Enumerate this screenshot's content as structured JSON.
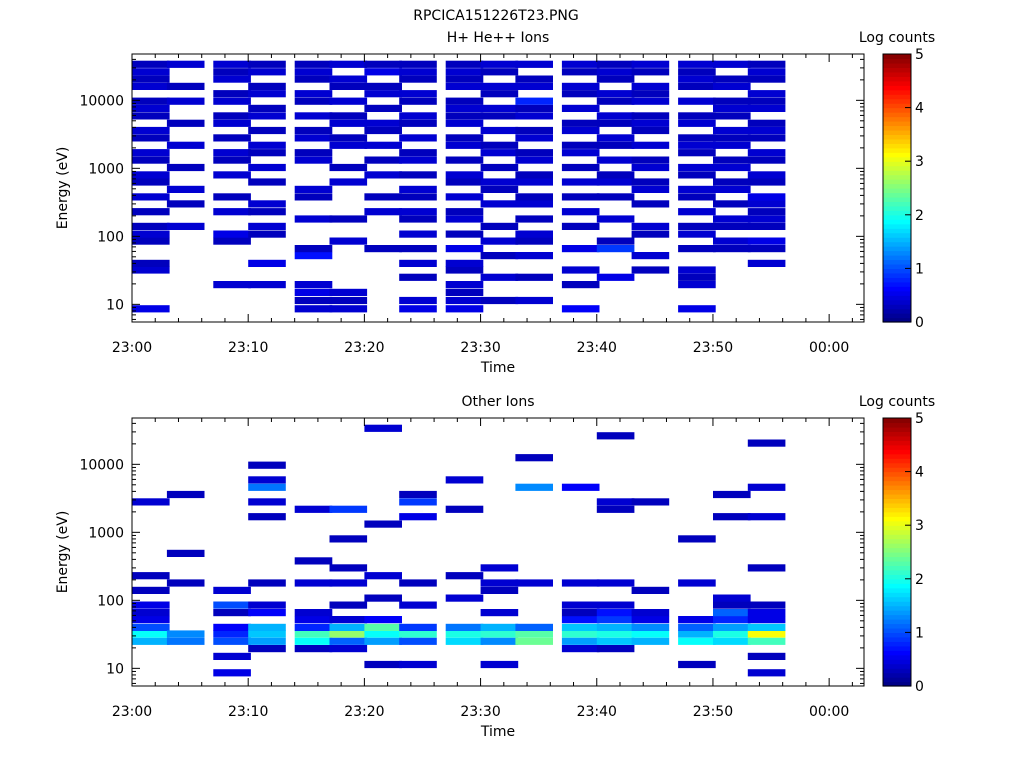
{
  "figure_title": "RPCICA151226T23.PNG",
  "chart_data": [
    {
      "type": "heatmap",
      "title": "H+ He++ Ions",
      "xlabel": "Time",
      "ylabel": "Energy (eV)",
      "colorbar_label": "Log counts",
      "x_ticks": [
        "23:00",
        "23:10",
        "23:20",
        "23:30",
        "23:40",
        "23:50",
        "00:00"
      ],
      "y_ticks": [
        "10",
        "100",
        "1000",
        "10000"
      ],
      "y_scale": "log",
      "y_range_ev": [
        5.5,
        48000
      ],
      "x_range": [
        "23:00",
        "00:03"
      ],
      "colorbar_ticks": [
        "0",
        "1",
        "2",
        "3",
        "4",
        "5"
      ],
      "colorbar_range": [
        0,
        5
      ],
      "columns": [
        "23:00",
        "23:03",
        "23:07",
        "23:10",
        "23:14",
        "23:17",
        "23:20",
        "23:23",
        "23:27",
        "23:30",
        "23:33",
        "23:37",
        "23:40",
        "23:43",
        "23:47",
        "23:50",
        "23:53"
      ],
      "energy_bins_ev": [
        8.6,
        11.4,
        15,
        19.5,
        25,
        32,
        40,
        52,
        66,
        85,
        108,
        140,
        180,
        230,
        300,
        380,
        490,
        630,
        800,
        1030,
        1320,
        1700,
        2180,
        2800,
        3600,
        4600,
        5900,
        7600,
        9700,
        12500,
        16000,
        20500,
        26300,
        33800
      ],
      "levels": [
        [
          0.5,
          0,
          0,
          0,
          0,
          0.4,
          0.3,
          0,
          0,
          0.3,
          0.4,
          0.3,
          0,
          0.3,
          0,
          0.4,
          0,
          0.3,
          0.4,
          0,
          0.3,
          0.4,
          0,
          0.3,
          0.4,
          0,
          0.3,
          0.4,
          0.3,
          0,
          0.4,
          0.3,
          0.4,
          0.3
        ],
        [
          0,
          0,
          0,
          0,
          0,
          0,
          0,
          0,
          0,
          0,
          0,
          0.4,
          0,
          0,
          0.3,
          0,
          0.4,
          0,
          0,
          0.3,
          0,
          0,
          0.4,
          0,
          0,
          0.3,
          0,
          0,
          0.4,
          0,
          0.3,
          0,
          0,
          0.4
        ],
        [
          0,
          0,
          0,
          0.4,
          0,
          0,
          0,
          0,
          0,
          0.3,
          0.5,
          0,
          0,
          0.4,
          0,
          0.3,
          0,
          0,
          0.4,
          0,
          0.3,
          0.4,
          0,
          0.3,
          0,
          0.4,
          0.3,
          0,
          0.4,
          0.3,
          0,
          0.4,
          0.3,
          0.4
        ],
        [
          0,
          0,
          0,
          0.4,
          0,
          0,
          0.5,
          0,
          0,
          0,
          0.3,
          0.4,
          0,
          0.3,
          0.4,
          0,
          0,
          0.3,
          0,
          0.4,
          0,
          0.3,
          0.4,
          0,
          0.3,
          0,
          0.4,
          0.3,
          0,
          0.4,
          0.3,
          0,
          0.4,
          0.3
        ],
        [
          0.4,
          0.3,
          0.5,
          0.4,
          0,
          0,
          0,
          0.7,
          0.3,
          0,
          0,
          0,
          0.4,
          0,
          0,
          0.3,
          0.4,
          0,
          0,
          0,
          0.4,
          0.3,
          0,
          0.4,
          0.3,
          0,
          0.4,
          0,
          0.3,
          0.4,
          0,
          0.3,
          0.4,
          0.3
        ],
        [
          0.4,
          0.3,
          0.4,
          0,
          0,
          0,
          0,
          0,
          0,
          0.4,
          0,
          0,
          0.3,
          0,
          0,
          0,
          0,
          0.4,
          0,
          0.3,
          0,
          0,
          0.4,
          0.3,
          0,
          0.4,
          0.3,
          0,
          0.4,
          0,
          0.3,
          0.4,
          0,
          0.4
        ],
        [
          0,
          0,
          0,
          0,
          0,
          0,
          0,
          0,
          0.3,
          0,
          0,
          0,
          0,
          0.4,
          0,
          0.3,
          0,
          0,
          0.4,
          0,
          0.3,
          0,
          0.4,
          0,
          0.3,
          0.4,
          0,
          0.3,
          0,
          0.4,
          0.3,
          0,
          0.5,
          0.3
        ],
        [
          0.5,
          0.4,
          0,
          0,
          0.3,
          0,
          0.4,
          0,
          0.3,
          0,
          0.4,
          0,
          0.3,
          0.4,
          0,
          0.3,
          0.4,
          0,
          0.3,
          0,
          0.4,
          0.3,
          0,
          0.4,
          0,
          0.3,
          0.4,
          0,
          0.3,
          0.4,
          0,
          0.3,
          0.4,
          0.3
        ],
        [
          0.5,
          0.4,
          0.3,
          0.4,
          0,
          0.3,
          0.4,
          0,
          0.5,
          0,
          0.3,
          0,
          0.4,
          0.3,
          0,
          0.4,
          0,
          0.3,
          0.4,
          0,
          0.3,
          0,
          0.4,
          0.3,
          0,
          0.4,
          0.3,
          0.4,
          0.3,
          0,
          0.4,
          0.3,
          0.4,
          0.3
        ],
        [
          0,
          0.3,
          0,
          0,
          0.4,
          0,
          0,
          0.3,
          0,
          0.4,
          0,
          0.3,
          0,
          0,
          0.4,
          0,
          0.3,
          0.4,
          0,
          0.3,
          0,
          0.4,
          0.3,
          0,
          0.4,
          0,
          0.3,
          0.4,
          0,
          0.3,
          0.4,
          0,
          0.3,
          0.4
        ],
        [
          0,
          0.4,
          0,
          0,
          0.3,
          0,
          0,
          0.4,
          0,
          0.3,
          0.4,
          0,
          0.3,
          0,
          0.4,
          0.3,
          0,
          0.4,
          0.3,
          0,
          0.4,
          0.3,
          0,
          0.4,
          0.3,
          0,
          0.4,
          0.3,
          0.8,
          0,
          0.4,
          0.3,
          0,
          0.4
        ],
        [
          0.6,
          0,
          0,
          0.3,
          0,
          0.4,
          0,
          0,
          0.5,
          0,
          0,
          0.3,
          0,
          0.4,
          0,
          0.3,
          0,
          0.4,
          0,
          0.3,
          0,
          0.4,
          0.3,
          0,
          0.4,
          0.3,
          0,
          0.4,
          0,
          0.3,
          0.4,
          0,
          0.3,
          0.4
        ],
        [
          0,
          0,
          0,
          0,
          0.5,
          0,
          0,
          0,
          0.9,
          0.3,
          0,
          0,
          0.4,
          0,
          0,
          0.3,
          0,
          0.4,
          0.3,
          0,
          0.4,
          0,
          0.3,
          0.4,
          0,
          0.3,
          0.4,
          0,
          0.3,
          0.4,
          0,
          0.3,
          0.4,
          0.3
        ],
        [
          0,
          0,
          0,
          0,
          0,
          0.3,
          0,
          0.4,
          0,
          0,
          0.3,
          0.4,
          0,
          0,
          0.3,
          0,
          0.4,
          0.3,
          0,
          0.4,
          0.3,
          0,
          0.4,
          0,
          0.3,
          0.4,
          0.3,
          0,
          0.4,
          0.3,
          0.4,
          0,
          0.3,
          0.4
        ],
        [
          0.5,
          0,
          0,
          0.4,
          0.3,
          0.4,
          0,
          0,
          0.3,
          0,
          0.4,
          0.3,
          0,
          0.4,
          0,
          0.3,
          0.4,
          0,
          0.3,
          0.4,
          0,
          0.3,
          0.4,
          0.3,
          0,
          0.4,
          0.3,
          0,
          0.4,
          0,
          0.3,
          0.4,
          0.3,
          0.4
        ],
        [
          0,
          0,
          0,
          0,
          0,
          0,
          0,
          0,
          0.3,
          0.4,
          0,
          0.3,
          0.4,
          0,
          0.3,
          0,
          0.4,
          0.3,
          0,
          0.4,
          0.3,
          0,
          0.4,
          0.3,
          0.4,
          0,
          0.3,
          0.4,
          0.3,
          0,
          0.4,
          0.3,
          0,
          0.4
        ],
        [
          0,
          0,
          0,
          0,
          0,
          0,
          0.4,
          0,
          0.3,
          0.5,
          0,
          0.3,
          0.4,
          0.3,
          0.4,
          0.5,
          0,
          0.3,
          0.4,
          0,
          0.3,
          0.4,
          0,
          0.3,
          0.4,
          0.3,
          0,
          0.4,
          0.3,
          0.4,
          0,
          0.3,
          0.4,
          0.3
        ]
      ]
    },
    {
      "type": "heatmap",
      "title": "Other Ions",
      "xlabel": "Time",
      "ylabel": "Energy (eV)",
      "colorbar_label": "Log counts",
      "x_ticks": [
        "23:00",
        "23:10",
        "23:20",
        "23:30",
        "23:40",
        "23:50",
        "00:00"
      ],
      "y_ticks": [
        "10",
        "100",
        "1000",
        "10000"
      ],
      "y_scale": "log",
      "y_range_ev": [
        5.5,
        48000
      ],
      "x_range": [
        "23:00",
        "00:03"
      ],
      "colorbar_ticks": [
        "0",
        "1",
        "2",
        "3",
        "4",
        "5"
      ],
      "colorbar_range": [
        0,
        5
      ],
      "columns": [
        "23:00",
        "23:03",
        "23:07",
        "23:10",
        "23:14",
        "23:17",
        "23:20",
        "23:23",
        "23:27",
        "23:30",
        "23:33",
        "23:37",
        "23:40",
        "23:43",
        "23:47",
        "23:50",
        "23:53"
      ],
      "energy_bins_ev": [
        8.6,
        11.4,
        15,
        19.5,
        25,
        32,
        40,
        52,
        66,
        85,
        108,
        140,
        180,
        230,
        300,
        380,
        490,
        630,
        800,
        1030,
        1320,
        1700,
        2180,
        2800,
        3600,
        4600,
        5900,
        7600,
        9700,
        12500,
        16000,
        20500,
        26300,
        33800
      ],
      "levels": [
        [
          0,
          0,
          0,
          0,
          1.5,
          1.9,
          1.0,
          0.5,
          0.4,
          0.5,
          0,
          0.3,
          0,
          0.3,
          0,
          0,
          0,
          0,
          0,
          0,
          0,
          0,
          0,
          0.4,
          0,
          0,
          0,
          0,
          0,
          0,
          0,
          0,
          0,
          0
        ],
        [
          0,
          0,
          0,
          0,
          1.2,
          1.3,
          0,
          0,
          0,
          0,
          0,
          0,
          0.3,
          0,
          0,
          0,
          0.3,
          0,
          0,
          0,
          0,
          0,
          0,
          0,
          0.3,
          0,
          0,
          0,
          0,
          0,
          0,
          0,
          0,
          0
        ],
        [
          0.5,
          0,
          0.4,
          0,
          1.0,
          0.8,
          0.6,
          0,
          0.3,
          1.0,
          0,
          0.4,
          0,
          0,
          0,
          0,
          0,
          0,
          0,
          0,
          0,
          0,
          0,
          0,
          0,
          0,
          0,
          0,
          0,
          0,
          0,
          0,
          0,
          0
        ],
        [
          0,
          0,
          0,
          0.3,
          1.4,
          1.6,
          1.5,
          0,
          0.6,
          0.4,
          0,
          0,
          0.3,
          0,
          0,
          0,
          0,
          0,
          0,
          0,
          0,
          0.3,
          0,
          0.4,
          0,
          1.2,
          0.4,
          0,
          0.3,
          0,
          0,
          0,
          0,
          0
        ],
        [
          0,
          0,
          0,
          0.3,
          1.9,
          2.2,
          0.8,
          0.5,
          0.4,
          0,
          0,
          0,
          0.4,
          0,
          0,
          0.3,
          0,
          0,
          0,
          0,
          0,
          0,
          0.4,
          0,
          0,
          0,
          0,
          0,
          0,
          0,
          0,
          0,
          0,
          0
        ],
        [
          0,
          0,
          0,
          0.4,
          1.1,
          2.6,
          1.5,
          0.4,
          0,
          0.3,
          0,
          0,
          0.4,
          0,
          0.3,
          0,
          0,
          0,
          0.3,
          0,
          0,
          0,
          0.9,
          0,
          0,
          0,
          0,
          0,
          0,
          0,
          0,
          0,
          0,
          0
        ],
        [
          0,
          0.3,
          0,
          0,
          1.4,
          1.9,
          2.3,
          0.6,
          0,
          0,
          0.3,
          0,
          0,
          0.4,
          0,
          0,
          0,
          0,
          0,
          0,
          0.3,
          0,
          0,
          0,
          0,
          0,
          0,
          0,
          0,
          0,
          0,
          0,
          0,
          0.4
        ],
        [
          0,
          0.4,
          0,
          0,
          1.0,
          2.1,
          0.9,
          0,
          0,
          0.4,
          0,
          0,
          0.3,
          0,
          0,
          0,
          0,
          0,
          0,
          0,
          0,
          0.5,
          0,
          0.9,
          0.3,
          0,
          0,
          0,
          0,
          0,
          0,
          0,
          0,
          0
        ],
        [
          0,
          0,
          0,
          0,
          1.7,
          2.0,
          1.2,
          0,
          0,
          0,
          0.4,
          0,
          0,
          0.3,
          0,
          0,
          0,
          0,
          0,
          0,
          0,
          0,
          0.3,
          0,
          0,
          0,
          0.4,
          0,
          0,
          0,
          0,
          0,
          0,
          0
        ],
        [
          0,
          0.4,
          0,
          0,
          1.3,
          2.1,
          1.5,
          0,
          0.4,
          0,
          0,
          0.3,
          0.4,
          0,
          0.4,
          0,
          0,
          0,
          0,
          0,
          0,
          0,
          0,
          0,
          0,
          0,
          0,
          0,
          0,
          0,
          0,
          0,
          0,
          0
        ],
        [
          0,
          0,
          0,
          0,
          2.4,
          2.3,
          1.1,
          0,
          0,
          0,
          0,
          0,
          0.4,
          0,
          0,
          0,
          0,
          0,
          0,
          0,
          0,
          0,
          0,
          0,
          0,
          1.3,
          0,
          0,
          0,
          0.3,
          0,
          0,
          0,
          0
        ],
        [
          0,
          0,
          0,
          0.4,
          1.4,
          2.1,
          1.6,
          0.7,
          0.3,
          0.4,
          0,
          0,
          0.4,
          0,
          0,
          0,
          0,
          0,
          0,
          0,
          0,
          0,
          0,
          0,
          0,
          0.6,
          0,
          0,
          0,
          0,
          0,
          0,
          0,
          0
        ],
        [
          0,
          0,
          0,
          0.3,
          1.6,
          2.0,
          1.5,
          0.9,
          0.7,
          0.4,
          0,
          0,
          0.4,
          0,
          0,
          0,
          0,
          0,
          0,
          0,
          0,
          0,
          0.3,
          0.4,
          0,
          0,
          0,
          0,
          0,
          0,
          0,
          0,
          0.3,
          0
        ],
        [
          0,
          0,
          0,
          0,
          1.5,
          1.9,
          1.3,
          0.5,
          0.4,
          0,
          0,
          0.3,
          0,
          0,
          0,
          0,
          0,
          0,
          0,
          0,
          0,
          0,
          0,
          0.3,
          0,
          0,
          0,
          0,
          0,
          0,
          0,
          0,
          0,
          0
        ],
        [
          0,
          0.3,
          0,
          0,
          1.9,
          1.5,
          1.1,
          0.5,
          0,
          0,
          0,
          0,
          0.4,
          0,
          0,
          0,
          0,
          0,
          0.3,
          0,
          0,
          0,
          0,
          0,
          0,
          0,
          0,
          0,
          0,
          0,
          0,
          0,
          0,
          0
        ],
        [
          0,
          0,
          0,
          0,
          1.7,
          2.0,
          1.4,
          0.8,
          1.1,
          0.3,
          0.4,
          0,
          0,
          0,
          0,
          0,
          0,
          0,
          0,
          0,
          0,
          0.3,
          0,
          0,
          0.3,
          0,
          0,
          0,
          0,
          0,
          0,
          0,
          0,
          0
        ],
        [
          0.4,
          0,
          0.3,
          0,
          2.2,
          3.1,
          1.6,
          0.5,
          0.5,
          0.3,
          0,
          0,
          0,
          0,
          0.3,
          0,
          0,
          0,
          0,
          0,
          0,
          0.4,
          0,
          0,
          0,
          0.4,
          0,
          0,
          0,
          0,
          0,
          0.3,
          0,
          0
        ]
      ]
    }
  ],
  "colors": {
    "background": "#ffffff",
    "axis": "#000000"
  }
}
